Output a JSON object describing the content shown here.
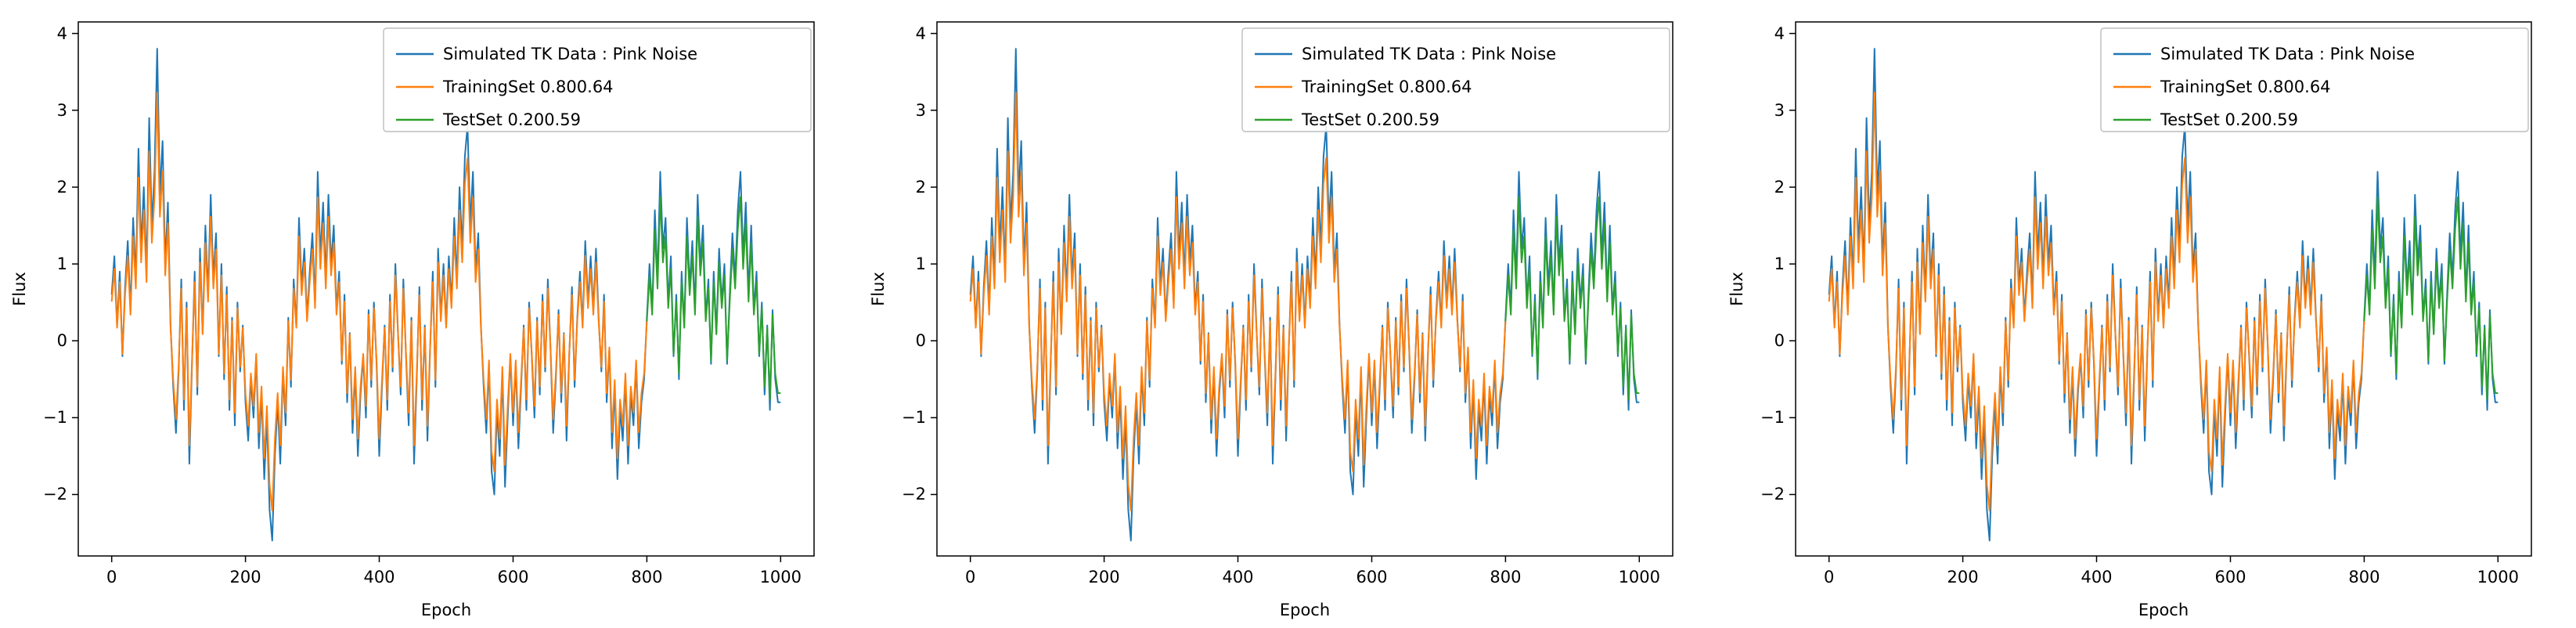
{
  "chart_data": {
    "type": "line",
    "panels": 3,
    "title": "",
    "xlabel": "Epoch",
    "ylabel": "Flux",
    "xlim": [
      -50,
      1050
    ],
    "ylim": [
      -2.8,
      4.15
    ],
    "xticks": [
      0,
      200,
      400,
      600,
      800,
      1000
    ],
    "xtick_labels": [
      "0",
      "200",
      "400",
      "600",
      "800",
      "1000"
    ],
    "yticks": [
      -2,
      -1,
      0,
      1,
      2,
      3,
      4
    ],
    "ytick_labels": [
      "−2",
      "−1",
      "0",
      "1",
      "2",
      "3",
      "4"
    ],
    "grid": false,
    "legend_position": "upper right",
    "x_start": 0,
    "x_step": 4,
    "train_range": [
      0,
      800
    ],
    "test_range": [
      800,
      1000
    ],
    "overlay_scale": 0.85,
    "legend": [
      {
        "label": "Simulated TK Data : Pink Noise",
        "color": "#1f77b4"
      },
      {
        "label": "TrainingSet 0.800.64",
        "color": "#ff7f0e"
      },
      {
        "label": "TestSet 0.200.59",
        "color": "#2ca02c"
      }
    ],
    "flux": [
      0.6,
      1.1,
      0.2,
      0.9,
      -0.2,
      0.7,
      1.3,
      0.4,
      1.6,
      0.8,
      2.5,
      1.2,
      2.0,
      0.9,
      2.9,
      1.5,
      2.2,
      3.8,
      1.9,
      2.6,
      1.0,
      1.8,
      0.2,
      -0.6,
      -1.2,
      -0.4,
      0.8,
      -0.9,
      0.5,
      -1.6,
      -0.3,
      0.9,
      -0.7,
      1.2,
      0.1,
      1.5,
      0.6,
      1.9,
      0.8,
      1.4,
      -0.2,
      1.0,
      -0.5,
      0.7,
      -0.9,
      0.3,
      -1.1,
      0.5,
      -0.4,
      0.2,
      -0.8,
      -1.3,
      -0.5,
      -1.0,
      -0.2,
      -1.4,
      -0.7,
      -1.8,
      -1.0,
      -2.2,
      -2.6,
      -1.5,
      -0.8,
      -1.6,
      -0.4,
      -1.1,
      0.3,
      -0.6,
      0.8,
      0.2,
      1.6,
      0.7,
      1.2,
      0.3,
      0.9,
      1.4,
      0.5,
      2.2,
      1.1,
      1.8,
      0.8,
      1.9,
      1.0,
      1.5,
      0.4,
      0.9,
      -0.3,
      0.6,
      -0.8,
      0.1,
      -1.2,
      -0.4,
      -1.5,
      -0.7,
      -0.2,
      -1.0,
      0.4,
      -0.6,
      0.5,
      -0.3,
      -1.5,
      -0.6,
      0.2,
      -0.9,
      0.6,
      -0.4,
      1.0,
      0.1,
      -0.7,
      0.8,
      -0.2,
      -1.1,
      0.3,
      -1.6,
      -0.5,
      0.7,
      -0.9,
      0.2,
      -1.3,
      -0.1,
      0.9,
      -0.6,
      1.2,
      0.3,
      1.0,
      0.2,
      1.1,
      0.5,
      1.6,
      0.8,
      2.0,
      1.2,
      2.4,
      2.8,
      1.5,
      2.2,
      0.9,
      1.4,
      0.2,
      -0.6,
      -1.2,
      -0.3,
      -1.7,
      -2.0,
      -0.9,
      -1.5,
      -0.4,
      -1.9,
      -1.0,
      -0.2,
      -1.1,
      -0.3,
      -1.4,
      -0.6,
      0.2,
      -0.9,
      0.5,
      -0.2,
      -1.0,
      0.3,
      -0.7,
      0.6,
      -0.4,
      0.8,
      -0.1,
      -1.2,
      -0.5,
      0.4,
      -0.8,
      0.1,
      -1.3,
      -0.2,
      0.7,
      -0.6,
      0.3,
      0.9,
      0.2,
      1.3,
      0.5,
      1.1,
      0.4,
      1.2,
      0.3,
      -0.4,
      0.6,
      -0.8,
      -0.1,
      -1.4,
      -0.6,
      -1.8,
      -0.9,
      -1.3,
      -0.5,
      -1.6,
      -0.7,
      -1.1,
      -0.3,
      -1.4,
      -0.8,
      -0.5,
      0.3,
      1.0,
      0.4,
      1.7,
      0.8,
      2.2,
      1.2,
      1.6,
      0.5,
      1.1,
      -0.2,
      0.6,
      -0.5,
      0.9,
      0.2,
      1.6,
      0.7,
      1.3,
      0.4,
      1.9,
      1.0,
      1.5,
      0.3,
      0.8,
      -0.3,
      0.9,
      0.1,
      1.2,
      0.5,
      1.0,
      -0.3,
      0.6,
      1.4,
      0.8,
      1.7,
      2.2,
      1.1,
      1.8,
      0.6,
      1.5,
      0.4,
      0.9,
      -0.2,
      0.5,
      -0.7,
      0.2,
      -0.9,
      0.4,
      -0.5,
      -0.8,
      -0.8
    ]
  }
}
